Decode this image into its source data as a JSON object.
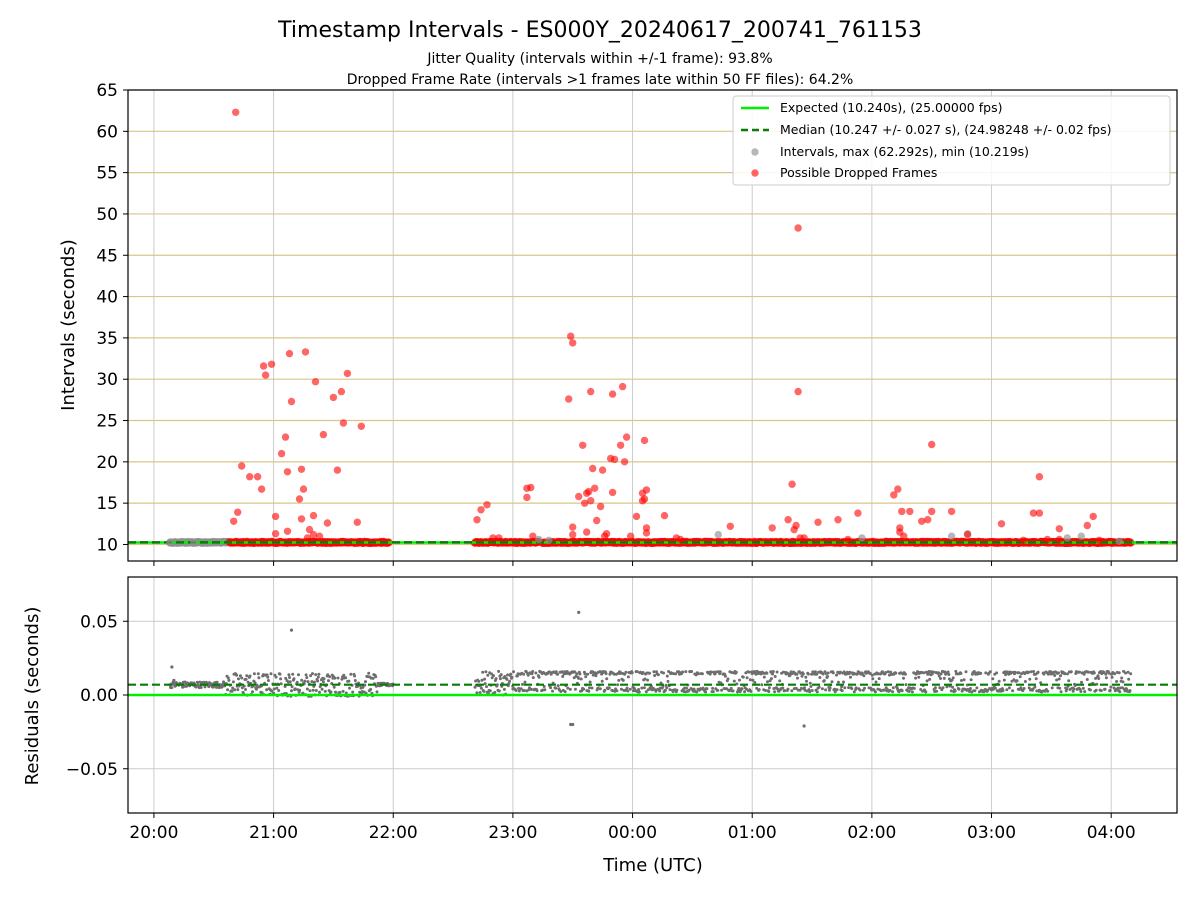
{
  "figure": {
    "title": "Timestamp Intervals - ES000Y_20240617_200741_761153",
    "subtitle_1": "Jitter Quality (intervals within +/-1 frame): 93.8%",
    "subtitle_2": "Dropped Frame Rate (intervals >1 frames late within 50 FF files): 64.2%",
    "xlabel": "Time (UTC)"
  },
  "colors": {
    "expected": "#00ee00",
    "median": "#0a7a0a",
    "intervals": "#909090",
    "dropped": "#ff0000",
    "hgrid_top": "#d9c68a",
    "grid": "#cccccc",
    "residual_points": "#6e6e6e"
  },
  "chart_data": [
    {
      "type": "scatter",
      "ylabel": "Intervals (seconds)",
      "xlim": [
        "19:47",
        "04:33"
      ],
      "ylim": [
        8,
        65
      ],
      "yticks": [
        10,
        15,
        20,
        25,
        30,
        35,
        40,
        45,
        50,
        55,
        60,
        65
      ],
      "xticks": [
        "20:00",
        "21:00",
        "22:00",
        "23:00",
        "00:00",
        "01:00",
        "02:00",
        "03:00",
        "04:00"
      ],
      "grid": "on",
      "legend_position": "top-right",
      "legend": [
        "Expected (10.240s), (25.00000 fps)",
        "Median (10.247 +/- 0.027 s), (24.98248 +/- 0.02 fps)",
        "Intervals, max (62.292s), min (10.219s)",
        "Possible Dropped Frames"
      ],
      "expected_line": 10.24,
      "median_line": 10.247,
      "baseline_segments": [
        {
          "name": "Intervals",
          "from": "20:08",
          "to": "20:38",
          "y": 10.25
        },
        {
          "name": "Possible Dropped Frames",
          "from": "20:38",
          "to": "21:58",
          "y": 10.25
        },
        {
          "name": "Possible Dropped Frames",
          "from": "22:41",
          "to": "23:13",
          "y": 10.25
        },
        {
          "name": "Possible Dropped Frames",
          "from": "23:15",
          "to": "04:10",
          "y": 10.25
        }
      ],
      "series": [
        {
          "name": "Intervals, max (62.292s), min (10.219s)",
          "points": [
            [
              "20:08",
              10.22
            ],
            [
              "20:20",
              10.25
            ],
            [
              "23:13",
              10.6
            ],
            [
              "23:18",
              10.5
            ],
            [
              "00:43",
              11.2
            ],
            [
              "01:55",
              10.8
            ],
            [
              "02:40",
              11.0
            ],
            [
              "02:48",
              11.3
            ],
            [
              "03:38",
              10.8
            ],
            [
              "03:45",
              11.0
            ],
            [
              "04:04",
              10.4
            ]
          ]
        },
        {
          "name": "Possible Dropped Frames",
          "points": [
            [
              "20:41",
              62.3
            ],
            [
              "20:44",
              19.5
            ],
            [
              "20:48",
              18.2
            ],
            [
              "20:52",
              18.2
            ],
            [
              "20:54",
              16.7
            ],
            [
              "20:55",
              31.6
            ],
            [
              "20:56",
              30.5
            ],
            [
              "20:59",
              31.8
            ],
            [
              "20:40",
              12.8
            ],
            [
              "20:42",
              13.9
            ],
            [
              "21:01",
              13.4
            ],
            [
              "21:01",
              11.3
            ],
            [
              "21:04",
              21.0
            ],
            [
              "21:06",
              23.0
            ],
            [
              "21:07",
              18.8
            ],
            [
              "21:07",
              11.6
            ],
            [
              "21:08",
              33.1
            ],
            [
              "21:09",
              27.3
            ],
            [
              "21:13",
              15.5
            ],
            [
              "21:14",
              19.1
            ],
            [
              "21:15",
              16.7
            ],
            [
              "21:16",
              33.3
            ],
            [
              "21:18",
              11.8
            ],
            [
              "21:14",
              13.1
            ],
            [
              "21:17",
              10.8
            ],
            [
              "21:20",
              13.5
            ],
            [
              "21:21",
              29.7
            ],
            [
              "21:23",
              11.0
            ],
            [
              "21:25",
              23.3
            ],
            [
              "21:27",
              12.6
            ],
            [
              "21:30",
              27.8
            ],
            [
              "21:32",
              19.0
            ],
            [
              "21:34",
              28.5
            ],
            [
              "21:35",
              24.7
            ],
            [
              "21:37",
              30.7
            ],
            [
              "21:42",
              12.7
            ],
            [
              "21:44",
              24.3
            ],
            [
              "21:20",
              11.2
            ],
            [
              "22:42",
              13.0
            ],
            [
              "22:44",
              14.2
            ],
            [
              "22:47",
              14.8
            ],
            [
              "22:50",
              10.8
            ],
            [
              "22:53",
              10.8
            ],
            [
              "23:07",
              15.7
            ],
            [
              "23:07",
              16.8
            ],
            [
              "23:09",
              16.9
            ],
            [
              "23:10",
              11.0
            ],
            [
              "23:28",
              27.6
            ],
            [
              "23:29",
              35.2
            ],
            [
              "23:30",
              34.4
            ],
            [
              "23:30",
              12.1
            ],
            [
              "23:30",
              11.2
            ],
            [
              "23:33",
              15.8
            ],
            [
              "23:35",
              22.0
            ],
            [
              "23:36",
              15.0
            ],
            [
              "23:37",
              16.2
            ],
            [
              "23:37",
              11.5
            ],
            [
              "23:38",
              16.4
            ],
            [
              "23:39",
              15.3
            ],
            [
              "23:39",
              28.5
            ],
            [
              "23:40",
              19.2
            ],
            [
              "23:41",
              16.8
            ],
            [
              "23:42",
              12.9
            ],
            [
              "23:44",
              14.6
            ],
            [
              "23:45",
              19.0
            ],
            [
              "23:46",
              11.0
            ],
            [
              "23:47",
              11.3
            ],
            [
              "23:49",
              20.4
            ],
            [
              "23:50",
              16.3
            ],
            [
              "23:50",
              28.2
            ],
            [
              "23:51",
              20.3
            ],
            [
              "23:54",
              22.0
            ],
            [
              "23:55",
              29.1
            ],
            [
              "23:56",
              20.0
            ],
            [
              "23:57",
              23.0
            ],
            [
              "23:59",
              11.0
            ],
            [
              "00:02",
              13.4
            ],
            [
              "00:05",
              16.2
            ],
            [
              "00:05",
              15.3
            ],
            [
              "00:06",
              15.5
            ],
            [
              "00:06",
              22.6
            ],
            [
              "00:07",
              16.6
            ],
            [
              "00:07",
              11.4
            ],
            [
              "00:07",
              12.0
            ],
            [
              "00:16",
              13.5
            ],
            [
              "00:22",
              10.8
            ],
            [
              "00:24",
              10.6
            ],
            [
              "00:49",
              12.2
            ],
            [
              "01:10",
              12.0
            ],
            [
              "01:18",
              13.0
            ],
            [
              "01:20",
              17.3
            ],
            [
              "01:22",
              12.3
            ],
            [
              "01:21",
              11.8
            ],
            [
              "01:23",
              48.3
            ],
            [
              "01:23",
              28.5
            ],
            [
              "01:24",
              10.8
            ],
            [
              "01:26",
              10.8
            ],
            [
              "01:33",
              12.7
            ],
            [
              "01:43",
              13.0
            ],
            [
              "01:48",
              10.6
            ],
            [
              "01:53",
              13.8
            ],
            [
              "02:11",
              16.0
            ],
            [
              "02:13",
              16.7
            ],
            [
              "02:15",
              14.0
            ],
            [
              "02:14",
              11.5
            ],
            [
              "02:14",
              12.0
            ],
            [
              "02:16",
              11.0
            ],
            [
              "02:19",
              14.0
            ],
            [
              "02:25",
              12.8
            ],
            [
              "02:28",
              13.0
            ],
            [
              "02:30",
              22.1
            ],
            [
              "02:30",
              14.0
            ],
            [
              "02:40",
              14.0
            ],
            [
              "02:48",
              11.2
            ],
            [
              "03:05",
              12.5
            ],
            [
              "03:16",
              10.5
            ],
            [
              "03:21",
              13.8
            ],
            [
              "03:24",
              13.8
            ],
            [
              "03:24",
              18.2
            ],
            [
              "03:28",
              10.6
            ],
            [
              "03:34",
              11.9
            ],
            [
              "03:34",
              10.6
            ],
            [
              "03:48",
              12.3
            ],
            [
              "03:51",
              13.4
            ],
            [
              "03:54",
              10.5
            ]
          ]
        }
      ]
    },
    {
      "type": "scatter",
      "ylabel": "Residuals (seconds)",
      "xlim": [
        "19:47",
        "04:33"
      ],
      "ylim": [
        -0.08,
        0.08
      ],
      "yticks": [
        0.05,
        0.0,
        -0.05
      ],
      "ytick_labels": [
        "0.05",
        "0.00",
        "−0.05"
      ],
      "xticks": [
        "20:00",
        "21:00",
        "22:00",
        "23:00",
        "00:00",
        "01:00",
        "02:00",
        "03:00",
        "04:00"
      ],
      "grid": "on",
      "expected_line": 0.0,
      "median_line": 0.007,
      "series": [
        {
          "name": "Residuals",
          "segments": [
            {
              "from": "20:08",
              "to": "20:36",
              "center": 0.007,
              "spread": 0.002
            },
            {
              "from": "20:36",
              "to": "21:52",
              "center": 0.007,
              "spread": 0.008
            },
            {
              "from": "21:52",
              "to": "22:00",
              "center": 0.007,
              "spread": 0.001
            },
            {
              "from": "22:41",
              "to": "23:00",
              "center": 0.008,
              "spread": 0.008
            },
            {
              "from": "23:00",
              "to": "04:10",
              "low": 0.002,
              "high": 0.016
            }
          ],
          "outliers": [
            [
              "20:09",
              0.019
            ],
            [
              "20:10",
              0.01
            ],
            [
              "21:09",
              0.044
            ],
            [
              "23:33",
              0.056
            ],
            [
              "23:29",
              -0.02
            ],
            [
              "23:30",
              -0.02
            ],
            [
              "01:26",
              -0.021
            ]
          ]
        }
      ]
    }
  ]
}
